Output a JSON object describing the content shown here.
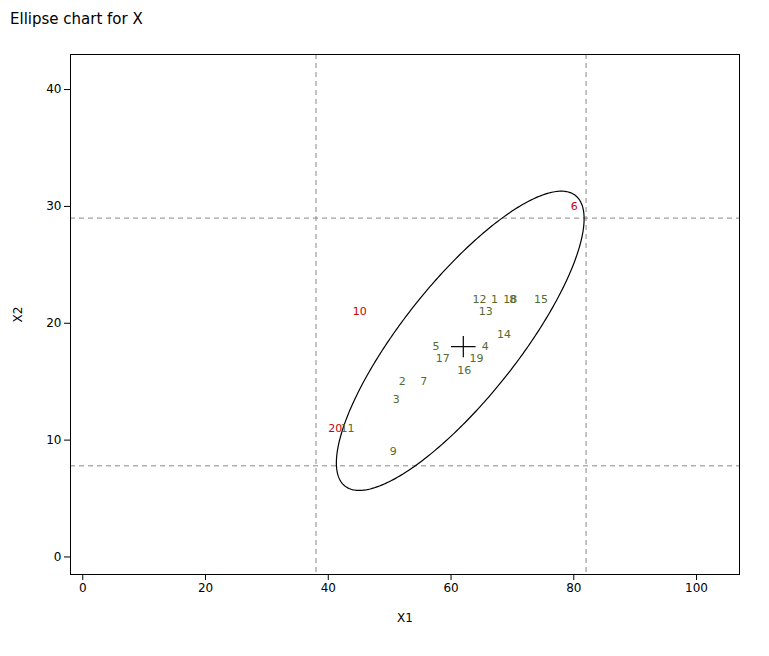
{
  "chart_data": {
    "type": "scatter",
    "title": "Ellipse chart for X",
    "xlabel": "X1",
    "ylabel": "X2",
    "xlim": [
      -2,
      107
    ],
    "ylim": [
      -1.5,
      43
    ],
    "xticks": [
      0,
      20,
      40,
      60,
      80,
      100
    ],
    "yticks": [
      0,
      10,
      20,
      30,
      40
    ],
    "grid": false,
    "hlines": [
      7.8,
      29.0
    ],
    "vlines": [
      38.0,
      82.0
    ],
    "ellipse": {
      "center_x": 61.5,
      "center_y": 18.5,
      "width": 46,
      "height": 13,
      "angle": 30
    },
    "cross": {
      "x": 62,
      "y": 18,
      "dx": 2.0,
      "dy": 0.9
    },
    "labels": [
      "1",
      "2",
      "3",
      "4",
      "5",
      "6",
      "7",
      "8",
      "9",
      "10",
      "11",
      "12",
      "13",
      "14",
      "15",
      "16",
      "17",
      "18",
      "19",
      "20"
    ],
    "x": [
      66.5,
      51.5,
      50.5,
      65.0,
      57.0,
      79.5,
      55.0,
      69.5,
      50.0,
      44.0,
      42.0,
      63.5,
      64.5,
      67.5,
      73.5,
      61.0,
      57.5,
      68.5,
      63.0,
      40.0
    ],
    "values": [
      22.0,
      15.0,
      13.5,
      18.0,
      18.0,
      30.0,
      15.0,
      22.0,
      9.0,
      21.0,
      11.0,
      22.0,
      21.0,
      19.0,
      22.0,
      16.0,
      17.0,
      22.0,
      17.0,
      11.0
    ],
    "colors": [
      "#556b2f",
      "#556b2f",
      "#556b2f",
      "#556b2f",
      "#556b2f",
      "#cc0000",
      "#556b2f",
      "#556b2f",
      "#556b2f",
      "#cc0000",
      "#556b2f",
      "#556b2f",
      "#556b2f",
      "#556b2f",
      "#556b2f",
      "#556b2f",
      "#556b2f",
      "#556b2f",
      "#556b2f",
      "#cc0000"
    ]
  }
}
